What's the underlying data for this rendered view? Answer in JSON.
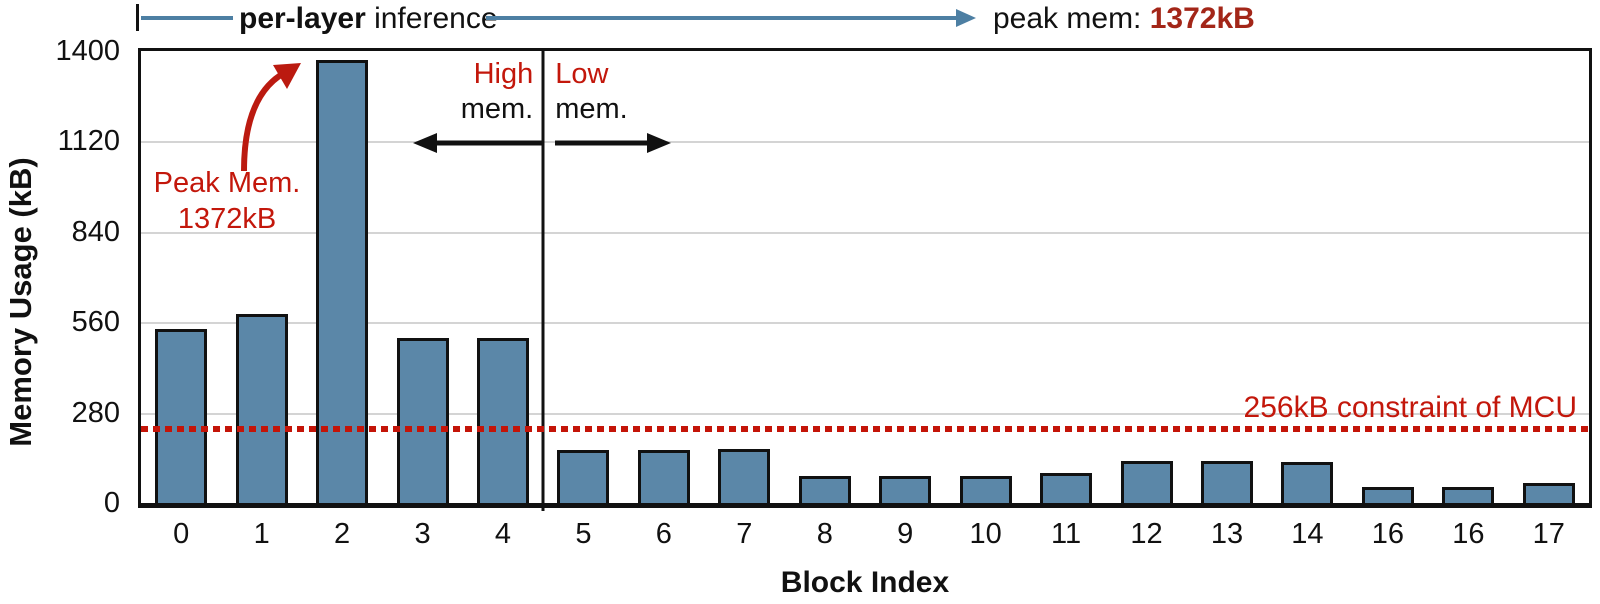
{
  "header": {
    "bracket_label_bold": "per-layer",
    "bracket_label_rest": " inference",
    "peak_label": "peak mem: ",
    "peak_value": "1372kB"
  },
  "chart_data": {
    "type": "bar",
    "title": "",
    "xlabel": "Block Index",
    "ylabel": "Memory Usage (kB)",
    "ylim": [
      0,
      1400
    ],
    "yticks": [
      0,
      280,
      560,
      840,
      1120,
      1400
    ],
    "grid": true,
    "categories": [
      "0",
      "1",
      "2",
      "3",
      "4",
      "5",
      "6",
      "7",
      "8",
      "9",
      "10",
      "11",
      "12",
      "13",
      "14",
      "16",
      "16",
      "17"
    ],
    "values": [
      540,
      585,
      1372,
      512,
      512,
      165,
      165,
      168,
      83,
      83,
      85,
      92,
      130,
      131,
      128,
      50,
      50,
      62
    ],
    "bar_color": "#5b87a8",
    "divider_after_index": 4,
    "constraint_line": {
      "label": "256kB constraint of MCU",
      "value_kB": 256,
      "drawn_at_kB": 230,
      "style": "dotted",
      "color": "#c41408"
    },
    "annotations": {
      "peak": {
        "line1": "Peak Mem.",
        "line2": "1372kB",
        "points_to_category": "2"
      },
      "high_region": {
        "line1": "High",
        "line2": "mem."
      },
      "low_region": {
        "line1": "Low",
        "line2": "mem."
      }
    }
  },
  "colors": {
    "bar_fill": "#5b87a8",
    "bracket_blue": "#4d7fa3",
    "annotation_red": "#c3170b",
    "peak_value_red": "#a32618",
    "gridline_gray": "#d4d4d4",
    "axis_black": "#111111"
  }
}
